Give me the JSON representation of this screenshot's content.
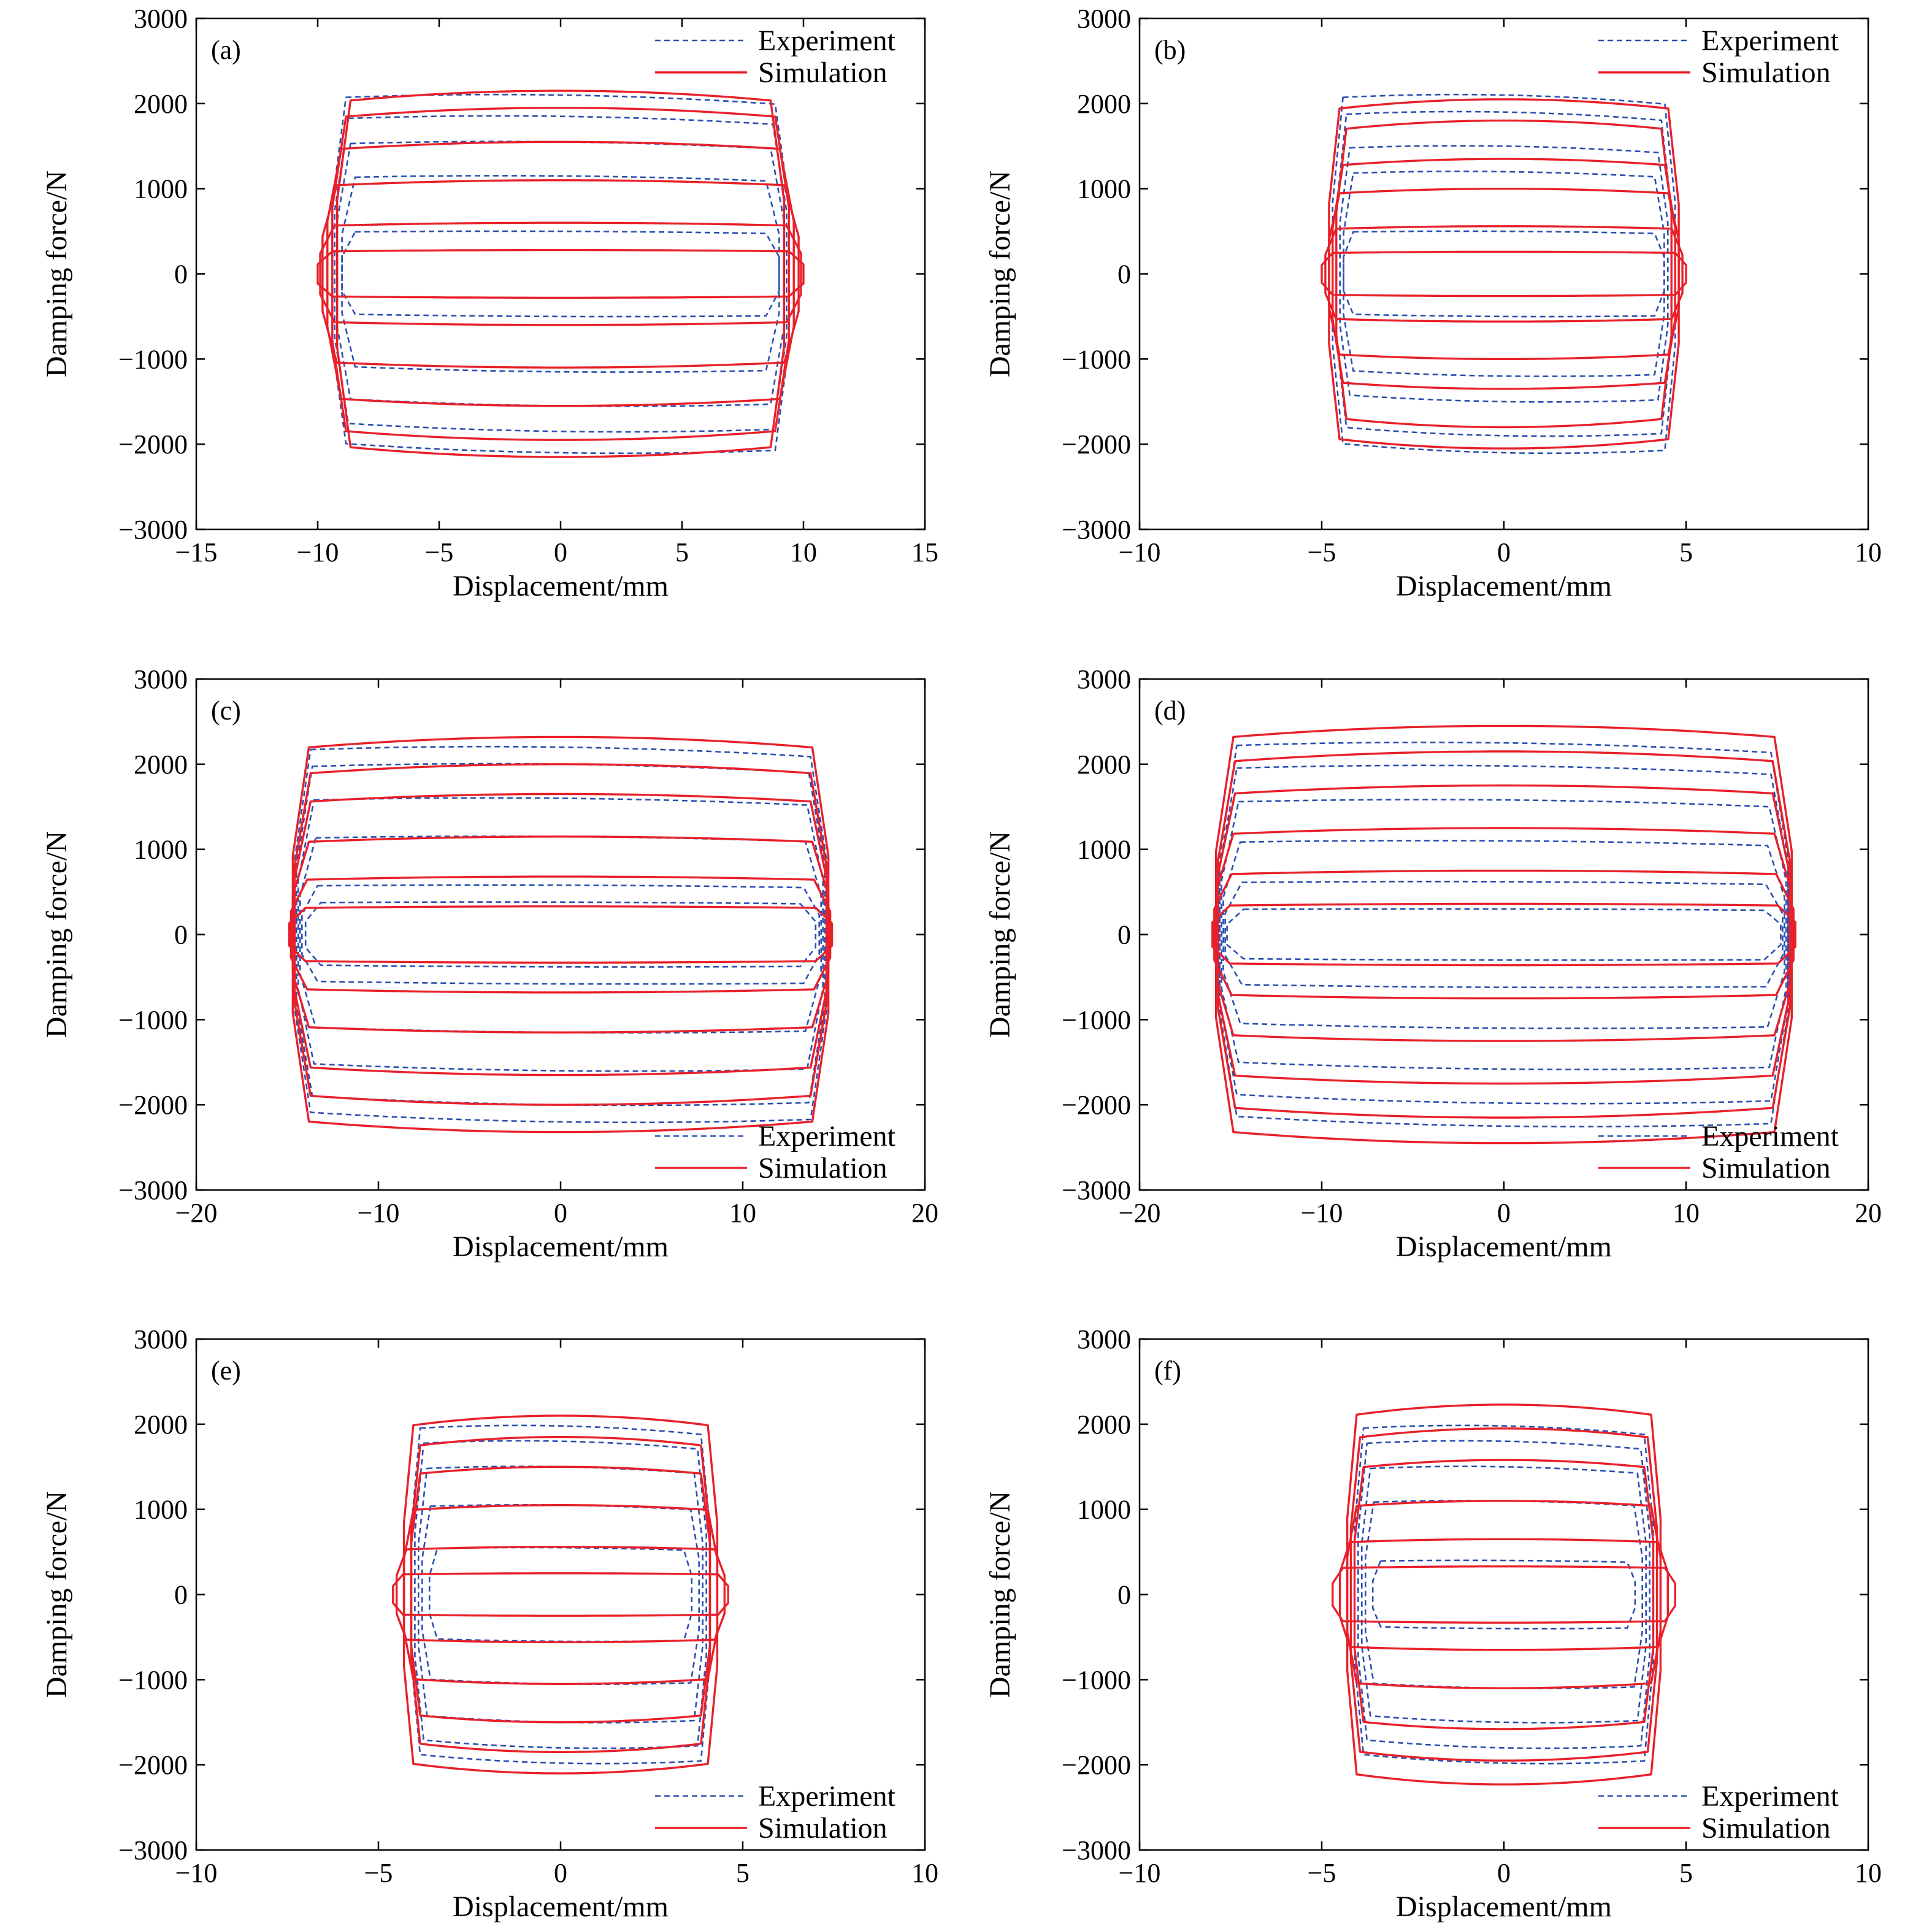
{
  "colors": {
    "experiment": "#2a4fae",
    "simulation": "#e8202a",
    "axis": "#000000"
  },
  "chart_data": [
    {
      "type": "line",
      "panel_label": "(a)",
      "xlabel": "Displacement/mm",
      "ylabel": "Damping force/N",
      "xlim": [
        -15,
        15
      ],
      "ylim": [
        -3000,
        3000
      ],
      "xticks": [
        "−15",
        "−10",
        "−5",
        "0",
        "5",
        "10",
        "15"
      ],
      "yticks": [
        "−3000",
        "−2000",
        "−1000",
        "0",
        "1000",
        "2000",
        "3000"
      ],
      "legend": {
        "position": "top-right",
        "entries": [
          "Experiment",
          "Simulation"
        ]
      },
      "series": [
        {
          "name": "Experiment",
          "style": "dashed",
          "color": "#2a4fae",
          "loops": [
            {
              "xmax": 9.0,
              "fmax": 500
            },
            {
              "xmax": 9.0,
              "fmax": 1150
            },
            {
              "xmax": 9.2,
              "fmax": 1550
            },
            {
              "xmax": 9.3,
              "fmax": 1850
            },
            {
              "xmax": 9.4,
              "fmax": 2100
            }
          ]
        },
        {
          "name": "Simulation",
          "style": "solid",
          "color": "#e8202a",
          "loops": [
            {
              "xmax": 10.0,
              "fmax": 280
            },
            {
              "xmax": 9.9,
              "fmax": 600
            },
            {
              "xmax": 9.8,
              "fmax": 1100
            },
            {
              "xmax": 9.6,
              "fmax": 1550
            },
            {
              "xmax": 9.4,
              "fmax": 1950
            },
            {
              "xmax": 9.2,
              "fmax": 2150
            }
          ]
        }
      ]
    },
    {
      "type": "line",
      "panel_label": "(b)",
      "xlabel": "Displacement/mm",
      "ylabel": "Damping force/N",
      "xlim": [
        -10,
        10
      ],
      "ylim": [
        -3000,
        3000
      ],
      "xticks": [
        "−10",
        "−5",
        "0",
        "5",
        "10"
      ],
      "yticks": [
        "−3000",
        "−2000",
        "−1000",
        "0",
        "1000",
        "2000",
        "3000"
      ],
      "legend": {
        "position": "top-right",
        "entries": [
          "Experiment",
          "Simulation"
        ]
      },
      "series": [
        {
          "name": "Experiment",
          "style": "dashed",
          "color": "#2a4fae",
          "loops": [
            {
              "xmax": 4.4,
              "fmax": 500
            },
            {
              "xmax": 4.4,
              "fmax": 1200
            },
            {
              "xmax": 4.5,
              "fmax": 1500
            },
            {
              "xmax": 4.6,
              "fmax": 1900
            },
            {
              "xmax": 4.7,
              "fmax": 2100
            }
          ]
        },
        {
          "name": "Simulation",
          "style": "solid",
          "color": "#e8202a",
          "loops": [
            {
              "xmax": 5.0,
              "fmax": 260
            },
            {
              "xmax": 4.9,
              "fmax": 560
            },
            {
              "xmax": 4.8,
              "fmax": 1000
            },
            {
              "xmax": 4.7,
              "fmax": 1350
            },
            {
              "xmax": 4.6,
              "fmax": 1800
            },
            {
              "xmax": 4.8,
              "fmax": 2050
            }
          ]
        }
      ]
    },
    {
      "type": "line",
      "panel_label": "(c)",
      "xlabel": "Displacement/mm",
      "ylabel": "Damping force/N",
      "xlim": [
        -20,
        20
      ],
      "ylim": [
        -3000,
        3000
      ],
      "xticks": [
        "−20",
        "−10",
        "0",
        "10",
        "20"
      ],
      "yticks": [
        "−3000",
        "−2000",
        "−1000",
        "0",
        "1000",
        "2000",
        "3000"
      ],
      "legend": {
        "position": "bottom-right",
        "entries": [
          "Experiment",
          "Simulation"
        ]
      },
      "series": [
        {
          "name": "Experiment",
          "style": "dashed",
          "color": "#2a4fae",
          "loops": [
            {
              "xmax": 14.0,
              "fmax": 380
            },
            {
              "xmax": 14.2,
              "fmax": 580
            },
            {
              "xmax": 14.3,
              "fmax": 1150
            },
            {
              "xmax": 14.4,
              "fmax": 1600
            },
            {
              "xmax": 14.5,
              "fmax": 2000
            },
            {
              "xmax": 14.6,
              "fmax": 2200
            }
          ]
        },
        {
          "name": "Simulation",
          "style": "solid",
          "color": "#e8202a",
          "loops": [
            {
              "xmax": 14.9,
              "fmax": 330
            },
            {
              "xmax": 14.8,
              "fmax": 680
            },
            {
              "xmax": 14.7,
              "fmax": 1150
            },
            {
              "xmax": 14.6,
              "fmax": 1650
            },
            {
              "xmax": 14.6,
              "fmax": 2000
            },
            {
              "xmax": 14.7,
              "fmax": 2320
            }
          ]
        }
      ]
    },
    {
      "type": "line",
      "panel_label": "(d)",
      "xlabel": "Displacement/mm",
      "ylabel": "Damping force/N",
      "xlim": [
        -20,
        20
      ],
      "ylim": [
        -3000,
        3000
      ],
      "xticks": [
        "−20",
        "−10",
        "0",
        "10",
        "20"
      ],
      "yticks": [
        "−3000",
        "−2000",
        "−1000",
        "0",
        "1000",
        "2000",
        "3000"
      ],
      "legend": {
        "position": "bottom-right",
        "entries": [
          "Experiment",
          "Simulation"
        ]
      },
      "series": [
        {
          "name": "Experiment",
          "style": "dashed",
          "color": "#2a4fae",
          "loops": [
            {
              "xmax": 15.2,
              "fmax": 300
            },
            {
              "xmax": 15.3,
              "fmax": 620
            },
            {
              "xmax": 15.4,
              "fmax": 1100
            },
            {
              "xmax": 15.5,
              "fmax": 1580
            },
            {
              "xmax": 15.6,
              "fmax": 1980
            },
            {
              "xmax": 15.6,
              "fmax": 2250
            }
          ]
        },
        {
          "name": "Simulation",
          "style": "solid",
          "color": "#e8202a",
          "loops": [
            {
              "xmax": 16.0,
              "fmax": 360
            },
            {
              "xmax": 15.9,
              "fmax": 750
            },
            {
              "xmax": 15.8,
              "fmax": 1250
            },
            {
              "xmax": 15.7,
              "fmax": 1750
            },
            {
              "xmax": 15.7,
              "fmax": 2150
            },
            {
              "xmax": 15.8,
              "fmax": 2450
            }
          ]
        }
      ]
    },
    {
      "type": "line",
      "panel_label": "(e)",
      "xlabel": "Displacement/mm",
      "ylabel": "Damping force/N",
      "xlim": [
        -10,
        10
      ],
      "ylim": [
        -3000,
        3000
      ],
      "xticks": [
        "−10",
        "−5",
        "0",
        "5",
        "10"
      ],
      "yticks": [
        "−3000",
        "−2000",
        "−1000",
        "0",
        "1000",
        "2000",
        "3000"
      ],
      "legend": {
        "position": "bottom-right",
        "entries": [
          "Experiment",
          "Simulation"
        ]
      },
      "series": [
        {
          "name": "Experiment",
          "style": "dashed",
          "color": "#2a4fae",
          "loops": [
            {
              "xmax": 3.6,
              "fmax": 550
            },
            {
              "xmax": 3.8,
              "fmax": 1050
            },
            {
              "xmax": 3.9,
              "fmax": 1500
            },
            {
              "xmax": 4.0,
              "fmax": 1800
            },
            {
              "xmax": 4.1,
              "fmax": 1980
            }
          ]
        },
        {
          "name": "Simulation",
          "style": "solid",
          "color": "#e8202a",
          "loops": [
            {
              "xmax": 4.6,
              "fmax": 250
            },
            {
              "xmax": 4.5,
              "fmax": 560
            },
            {
              "xmax": 4.3,
              "fmax": 1050
            },
            {
              "xmax": 4.1,
              "fmax": 1500
            },
            {
              "xmax": 4.1,
              "fmax": 1850
            },
            {
              "xmax": 4.3,
              "fmax": 2100
            }
          ]
        }
      ]
    },
    {
      "type": "line",
      "panel_label": "(f)",
      "xlabel": "Displacement/mm",
      "ylabel": "Damping force/N",
      "xlim": [
        -10,
        10
      ],
      "ylim": [
        -3000,
        3000
      ],
      "xticks": [
        "−10",
        "−5",
        "0",
        "5",
        "10"
      ],
      "yticks": [
        "−3000",
        "−2000",
        "−1000",
        "0",
        "1000",
        "2000",
        "3000"
      ],
      "legend": {
        "position": "bottom-right",
        "entries": [
          "Experiment",
          "Simulation"
        ]
      },
      "series": [
        {
          "name": "Experiment",
          "style": "dashed",
          "color": "#2a4fae",
          "loops": [
            {
              "xmax": 3.6,
              "fmax": 400
            },
            {
              "xmax": 3.8,
              "fmax": 1100
            },
            {
              "xmax": 3.9,
              "fmax": 1500
            },
            {
              "xmax": 4.0,
              "fmax": 1800
            },
            {
              "xmax": 4.1,
              "fmax": 1980
            }
          ]
        },
        {
          "name": "Simulation",
          "style": "solid",
          "color": "#e8202a",
          "loops": [
            {
              "xmax": 4.7,
              "fmax": 330
            },
            {
              "xmax": 4.5,
              "fmax": 650
            },
            {
              "xmax": 4.3,
              "fmax": 1100
            },
            {
              "xmax": 4.1,
              "fmax": 1580
            },
            {
              "xmax": 4.2,
              "fmax": 1950
            },
            {
              "xmax": 4.3,
              "fmax": 2230
            }
          ]
        }
      ]
    }
  ]
}
